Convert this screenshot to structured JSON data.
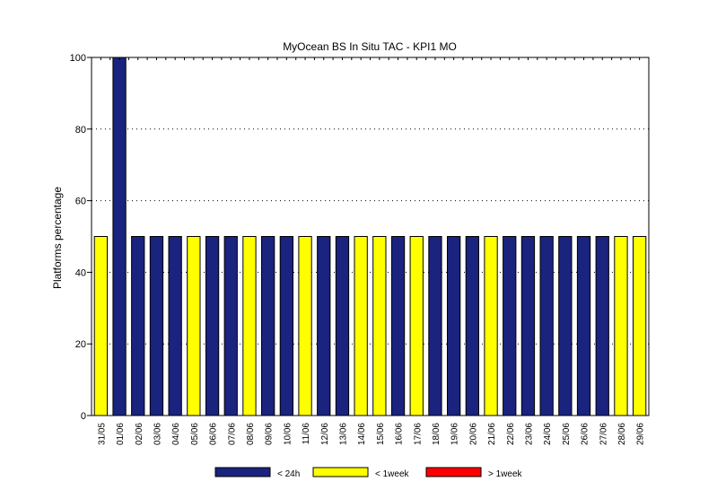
{
  "chart_data": {
    "type": "bar",
    "title": "MyOcean  BS In Situ TAC - KPI1  MO",
    "xlabel": "",
    "ylabel": "Platforms percentage",
    "ylim": [
      0,
      100
    ],
    "yticks": [
      0,
      20,
      40,
      60,
      80,
      100
    ],
    "grid": "horizontal-dotted",
    "legend_position": "bottom",
    "categories": [
      "31/05",
      "01/06",
      "02/06",
      "03/06",
      "04/06",
      "05/06",
      "06/06",
      "07/06",
      "08/06",
      "09/06",
      "10/06",
      "11/06",
      "12/06",
      "13/06",
      "14/06",
      "15/06",
      "16/06",
      "17/06",
      "18/06",
      "19/06",
      "20/06",
      "21/06",
      "22/06",
      "23/06",
      "24/06",
      "25/06",
      "26/06",
      "27/06",
      "28/06",
      "29/06"
    ],
    "series": [
      {
        "name": "< 24h",
        "color": "#1a237e",
        "values": [
          0,
          100,
          50,
          50,
          50,
          0,
          50,
          50,
          0,
          50,
          50,
          0,
          50,
          50,
          0,
          0,
          50,
          0,
          50,
          50,
          50,
          0,
          50,
          50,
          50,
          50,
          50,
          50,
          0,
          0
        ]
      },
      {
        "name": "< 1week",
        "color": "#ffff00",
        "values": [
          50,
          0,
          0,
          0,
          0,
          50,
          0,
          0,
          50,
          0,
          0,
          50,
          0,
          0,
          50,
          50,
          0,
          50,
          0,
          0,
          0,
          50,
          0,
          0,
          0,
          0,
          0,
          0,
          50,
          50
        ]
      },
      {
        "name": "> 1week",
        "color": "#ff0000",
        "values": [
          0,
          0,
          0,
          0,
          0,
          0,
          0,
          0,
          0,
          0,
          0,
          0,
          0,
          0,
          0,
          0,
          0,
          0,
          0,
          0,
          0,
          0,
          0,
          0,
          0,
          0,
          0,
          0,
          0,
          0
        ]
      }
    ]
  }
}
